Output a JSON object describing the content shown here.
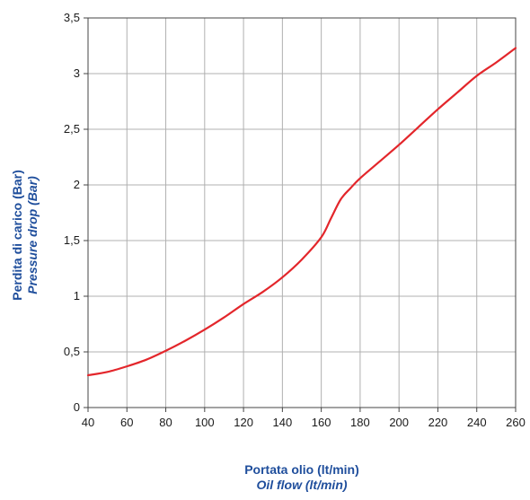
{
  "chart_data": {
    "type": "line",
    "title": "",
    "xlabel": "Portata olio (lt/min)",
    "xlabel_secondary": "Oil flow (lt/min)",
    "ylabel": "Perdita di carico (Bar)",
    "ylabel_secondary": "Pressure drop (Bar)",
    "xlim": [
      40,
      260
    ],
    "ylim": [
      0,
      3.5
    ],
    "x_ticks": [
      40,
      60,
      80,
      100,
      120,
      140,
      160,
      180,
      200,
      220,
      240,
      260
    ],
    "x_tick_labels": [
      "40",
      "60",
      "80",
      "100",
      "120",
      "140",
      "160",
      "180",
      "200",
      "220",
      "240",
      "260"
    ],
    "y_ticks": [
      0,
      0.5,
      1,
      1.5,
      2,
      2.5,
      3,
      3.5
    ],
    "y_tick_labels": [
      "0",
      "0,5",
      "1",
      "1,5",
      "2",
      "2,5",
      "3",
      "3,5"
    ],
    "grid": true,
    "legend": "none",
    "series": [
      {
        "color": "#e3262b",
        "x": [
          40,
          50,
          60,
          70,
          80,
          90,
          100,
          110,
          120,
          130,
          140,
          150,
          160,
          165,
          170,
          175,
          180,
          190,
          200,
          210,
          220,
          230,
          240,
          250,
          260
        ],
        "y": [
          0.29,
          0.32,
          0.37,
          0.43,
          0.51,
          0.6,
          0.7,
          0.81,
          0.93,
          1.04,
          1.17,
          1.33,
          1.53,
          1.7,
          1.87,
          1.97,
          2.06,
          2.21,
          2.36,
          2.52,
          2.68,
          2.83,
          2.98,
          3.1,
          3.23
        ]
      }
    ]
  },
  "style": {
    "label_color": "#1f4e9c",
    "grid_color": "#b0b0b0",
    "frame_color": "#444444",
    "background": "#ffffff"
  }
}
